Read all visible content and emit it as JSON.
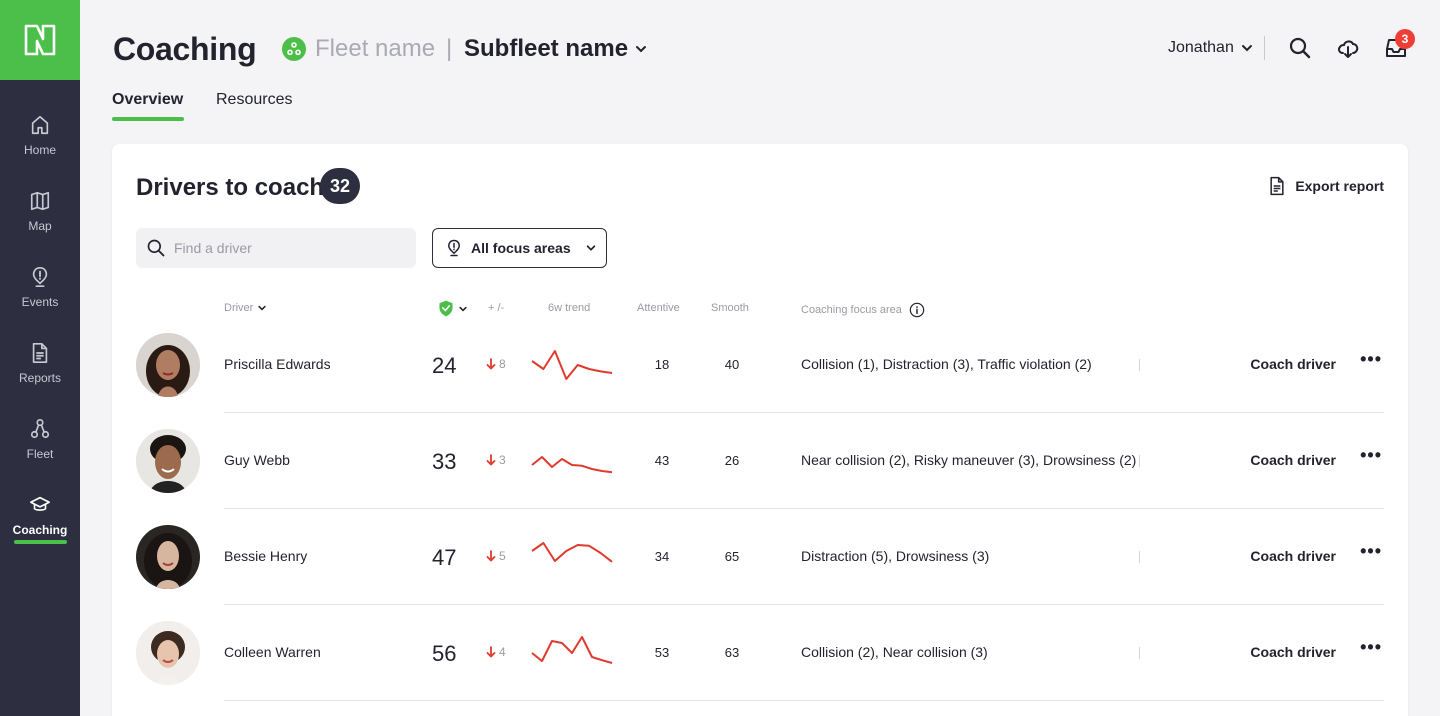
{
  "app": {
    "title": "Coaching",
    "fleet_name": "Fleet name",
    "separator": "|",
    "subfleet_name": "Subfleet name",
    "user_name": "Jonathan",
    "notification_count": "3",
    "accent_color": "#4bbf4a",
    "sidebar_color": "#2d2e3f"
  },
  "sidebar": {
    "items": [
      {
        "label": "Home",
        "icon": "home-icon"
      },
      {
        "label": "Map",
        "icon": "map-icon"
      },
      {
        "label": "Events",
        "icon": "events-icon"
      },
      {
        "label": "Reports",
        "icon": "reports-icon"
      },
      {
        "label": "Fleet",
        "icon": "fleet-icon"
      },
      {
        "label": "Coaching",
        "icon": "coaching-icon",
        "active": true
      }
    ]
  },
  "tabs": [
    {
      "label": "Overview",
      "active": true
    },
    {
      "label": "Resources",
      "active": false
    }
  ],
  "card": {
    "title": "Drivers to coach",
    "count": "32",
    "export_label": "Export report",
    "search_placeholder": "Find a driver",
    "focus_filter": "All focus areas"
  },
  "columns": {
    "driver": "Driver",
    "delta": "+ /-",
    "trend": "6w trend",
    "attentive": "Attentive",
    "smooth": "Smooth",
    "focus": "Coaching focus area"
  },
  "drivers": [
    {
      "name": "Priscilla Edwards",
      "score": "24",
      "delta": "8",
      "attentive": "18",
      "smooth": "40",
      "focus": "Collision (1), Distraction (3), Traffic violation (2)",
      "action": "Coach driver",
      "trend": [
        40,
        60,
        15,
        85,
        50,
        60,
        66,
        70
      ]
    },
    {
      "name": "Guy Webb",
      "score": "33",
      "delta": "3",
      "attentive": "43",
      "smooth": "26",
      "focus": "Near collision (2), Risky maneuver (3), Drowsiness (2)",
      "action": "Coach driver",
      "trend": [
        60,
        40,
        65,
        45,
        60,
        62,
        70,
        75,
        78
      ]
    },
    {
      "name": "Bessie Henry",
      "score": "47",
      "delta": "5",
      "attentive": "34",
      "smooth": "65",
      "focus": "Distraction (5), Drowsiness (3)",
      "action": "Coach driver",
      "trend": [
        35,
        15,
        60,
        35,
        20,
        22,
        40,
        62
      ]
    },
    {
      "name": "Colleen Warren",
      "score": "56",
      "delta": "4",
      "attentive": "53",
      "smooth": "63",
      "focus": "Collision (2), Near collision (3)",
      "action": "Coach driver",
      "trend": [
        50,
        70,
        20,
        25,
        50,
        10,
        60,
        68,
        75
      ]
    }
  ]
}
